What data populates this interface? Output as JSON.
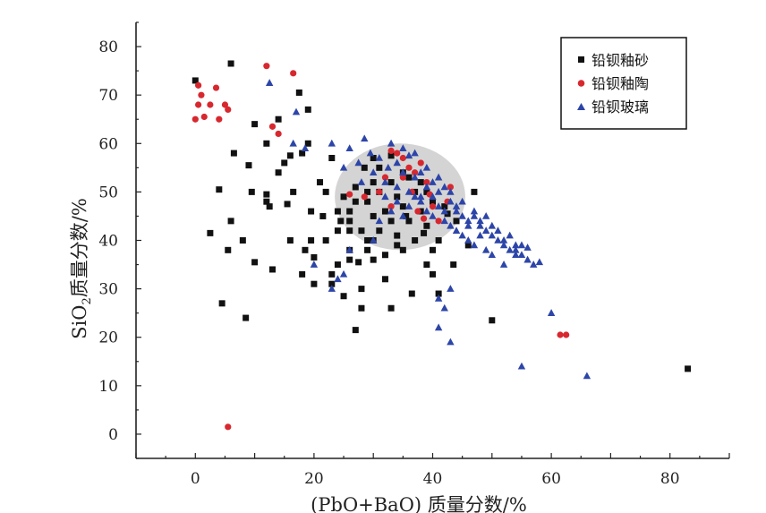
{
  "chart_data": {
    "type": "scatter",
    "xlabel": "(PbO+BaO) 质量分数/%",
    "ylabel_main": "SiO",
    "ylabel_sub": "2",
    "ylabel_rest": "质量分数/%",
    "xlim": [
      -10,
      90
    ],
    "ylim": [
      -5,
      85
    ],
    "xticks": [
      0,
      20,
      40,
      60,
      80
    ],
    "yticks": [
      0,
      10,
      20,
      30,
      40,
      50,
      60,
      70,
      80
    ],
    "grid": false,
    "legend_position": "top-right",
    "highlight_region": {
      "type": "ellipse",
      "cx": 34.5,
      "cy": 49,
      "rx": 11,
      "ry": 11,
      "color": "#cccccc"
    },
    "series": [
      {
        "name": "铅钡釉砂",
        "marker": "square",
        "color": "#111111",
        "points": [
          [
            0,
            73
          ],
          [
            6,
            76.5
          ],
          [
            10,
            64
          ],
          [
            14,
            65
          ],
          [
            17.5,
            70.5
          ],
          [
            19,
            67
          ],
          [
            6.5,
            58
          ],
          [
            9,
            55.5
          ],
          [
            12,
            60
          ],
          [
            15,
            56
          ],
          [
            16,
            57.5
          ],
          [
            18,
            58
          ],
          [
            19,
            60
          ],
          [
            14,
            54
          ],
          [
            12,
            49.5
          ],
          [
            4,
            50.5
          ],
          [
            9.5,
            50
          ],
          [
            15.5,
            47.5
          ],
          [
            19.5,
            46
          ],
          [
            21,
            52
          ],
          [
            22,
            50
          ],
          [
            23,
            57
          ],
          [
            2.5,
            41.5
          ],
          [
            6,
            44
          ],
          [
            12,
            48
          ],
          [
            19.5,
            40
          ],
          [
            16,
            40
          ],
          [
            5.5,
            38
          ],
          [
            10,
            35.5
          ],
          [
            13,
            34
          ],
          [
            18.5,
            38
          ],
          [
            20,
            36.5
          ],
          [
            4.5,
            27
          ],
          [
            8.5,
            24
          ],
          [
            23,
            33
          ],
          [
            24,
            35
          ],
          [
            26,
            36
          ],
          [
            27.5,
            35.5
          ],
          [
            29,
            38
          ],
          [
            30,
            36
          ],
          [
            28,
            26
          ],
          [
            27,
            21.5
          ],
          [
            25,
            28.5
          ],
          [
            32,
            32
          ],
          [
            33,
            26
          ],
          [
            35,
            38
          ],
          [
            36.5,
            29
          ],
          [
            39,
            35
          ],
          [
            40,
            33
          ],
          [
            41,
            29
          ],
          [
            43.5,
            35
          ],
          [
            46,
            39
          ],
          [
            47,
            50
          ],
          [
            50,
            23.5
          ],
          [
            83,
            13.5
          ],
          [
            24,
            46
          ],
          [
            26,
            44
          ],
          [
            28,
            42
          ],
          [
            29,
            48
          ],
          [
            30,
            45
          ],
          [
            31,
            50
          ],
          [
            32,
            46
          ],
          [
            33,
            52
          ],
          [
            34,
            49
          ],
          [
            35,
            47
          ],
          [
            36,
            44
          ],
          [
            37,
            50
          ],
          [
            38,
            46
          ],
          [
            39,
            43
          ],
          [
            40,
            48
          ],
          [
            25,
            49
          ],
          [
            27,
            51
          ],
          [
            30,
            57
          ],
          [
            33,
            57.5
          ],
          [
            35,
            54
          ],
          [
            38,
            52
          ],
          [
            41,
            40
          ],
          [
            42,
            47
          ],
          [
            44,
            44
          ],
          [
            28.5,
            55
          ],
          [
            31,
            42
          ],
          [
            34,
            41
          ],
          [
            36,
            53
          ],
          [
            39,
            50
          ],
          [
            22,
            40
          ],
          [
            24,
            42
          ],
          [
            26,
            38
          ],
          [
            29,
            40
          ],
          [
            32,
            37
          ],
          [
            34,
            39
          ],
          [
            20,
            31
          ],
          [
            23,
            31
          ],
          [
            18,
            33
          ],
          [
            26,
            46
          ],
          [
            29,
            50
          ],
          [
            31,
            55
          ],
          [
            33,
            44
          ],
          [
            37,
            40
          ],
          [
            40,
            38
          ],
          [
            28,
            30
          ],
          [
            12.5,
            47
          ],
          [
            8,
            40
          ],
          [
            16.5,
            50
          ],
          [
            21.5,
            45
          ],
          [
            24.5,
            44
          ],
          [
            27,
            48
          ],
          [
            30,
            52
          ],
          [
            35.5,
            45
          ],
          [
            38.5,
            41.5
          ],
          [
            42.5,
            45.5
          ],
          [
            26,
            42
          ],
          [
            30,
            40
          ]
        ]
      },
      {
        "name": "铅钡釉陶",
        "marker": "circle",
        "color": "#d8282f",
        "points": [
          [
            0,
            65
          ],
          [
            0.5,
            68
          ],
          [
            0.5,
            72
          ],
          [
            1,
            70
          ],
          [
            1.5,
            65.5
          ],
          [
            2.5,
            68
          ],
          [
            3.5,
            71.5
          ],
          [
            4,
            65
          ],
          [
            5,
            68
          ],
          [
            5.5,
            67
          ],
          [
            12,
            76
          ],
          [
            16.5,
            74.5
          ],
          [
            13,
            63.5
          ],
          [
            14,
            62
          ],
          [
            5.5,
            1.5
          ],
          [
            26,
            49.5
          ],
          [
            28.5,
            49
          ],
          [
            31,
            50
          ],
          [
            32,
            53
          ],
          [
            33,
            58.5
          ],
          [
            34,
            58
          ],
          [
            35,
            57
          ],
          [
            36,
            55
          ],
          [
            37,
            54
          ],
          [
            38,
            56
          ],
          [
            39,
            52
          ],
          [
            37.5,
            46
          ],
          [
            38.5,
            44.5
          ],
          [
            40,
            47
          ],
          [
            41,
            44
          ],
          [
            42.5,
            48
          ],
          [
            43,
            51
          ],
          [
            33,
            47
          ],
          [
            36.5,
            50
          ],
          [
            61.5,
            20.5
          ],
          [
            62.5,
            20.5
          ],
          [
            35,
            53
          ],
          [
            39.5,
            49.5
          ]
        ]
      },
      {
        "name": "铅钡玻璃",
        "marker": "triangle",
        "color": "#2d45a8",
        "points": [
          [
            12.5,
            72.5
          ],
          [
            17,
            66.5
          ],
          [
            16.5,
            60
          ],
          [
            18.5,
            59
          ],
          [
            23,
            60
          ],
          [
            26,
            59
          ],
          [
            28.5,
            61
          ],
          [
            29.5,
            58
          ],
          [
            27.5,
            56
          ],
          [
            31,
            57
          ],
          [
            32.5,
            55
          ],
          [
            34,
            56
          ],
          [
            35,
            54
          ],
          [
            36,
            57.5
          ],
          [
            37,
            53
          ],
          [
            38,
            54
          ],
          [
            39,
            51
          ],
          [
            40,
            52
          ],
          [
            41,
            50
          ],
          [
            42,
            51
          ],
          [
            43,
            48
          ],
          [
            44,
            47
          ],
          [
            45,
            45
          ],
          [
            46,
            44
          ],
          [
            47,
            46
          ],
          [
            48,
            43
          ],
          [
            49,
            42
          ],
          [
            50,
            43
          ],
          [
            51,
            40
          ],
          [
            52,
            39
          ],
          [
            53,
            38
          ],
          [
            54,
            39
          ],
          [
            55,
            37
          ],
          [
            56,
            36
          ],
          [
            57,
            35
          ],
          [
            58,
            35.5
          ],
          [
            50,
            37
          ],
          [
            52,
            35
          ],
          [
            54,
            38
          ],
          [
            56,
            38.5
          ],
          [
            41,
            28
          ],
          [
            42,
            26
          ],
          [
            43,
            30
          ],
          [
            41,
            22
          ],
          [
            43,
            19
          ],
          [
            60,
            25
          ],
          [
            55,
            14
          ],
          [
            66,
            12
          ],
          [
            20,
            35
          ],
          [
            23,
            30
          ],
          [
            24,
            32
          ],
          [
            25,
            33
          ],
          [
            26,
            38
          ],
          [
            30,
            40
          ],
          [
            31,
            44
          ],
          [
            32,
            49
          ],
          [
            33,
            46
          ],
          [
            34,
            48
          ],
          [
            35,
            45
          ],
          [
            36,
            47
          ],
          [
            37,
            49
          ],
          [
            38,
            48
          ],
          [
            39,
            46
          ],
          [
            40,
            45
          ],
          [
            41,
            47
          ],
          [
            42,
            44
          ],
          [
            43,
            43
          ],
          [
            44,
            42
          ],
          [
            45,
            41
          ],
          [
            46,
            40
          ],
          [
            47,
            39
          ],
          [
            48,
            41
          ],
          [
            49,
            38
          ],
          [
            30,
            54
          ],
          [
            32,
            52
          ],
          [
            34,
            51
          ],
          [
            36,
            50
          ],
          [
            38,
            49
          ],
          [
            40,
            49
          ],
          [
            42,
            46
          ],
          [
            44,
            46
          ],
          [
            46,
            43
          ],
          [
            48,
            44
          ],
          [
            50,
            41
          ],
          [
            52,
            40
          ],
          [
            54,
            37
          ],
          [
            33,
            60
          ],
          [
            35,
            59
          ],
          [
            37,
            58
          ],
          [
            39,
            55
          ],
          [
            41,
            53
          ],
          [
            43,
            50
          ],
          [
            45,
            48
          ],
          [
            47,
            45
          ],
          [
            49,
            45
          ],
          [
            51,
            42
          ],
          [
            53,
            41
          ],
          [
            55,
            39
          ],
          [
            25,
            55
          ],
          [
            28,
            52
          ]
        ]
      }
    ]
  }
}
